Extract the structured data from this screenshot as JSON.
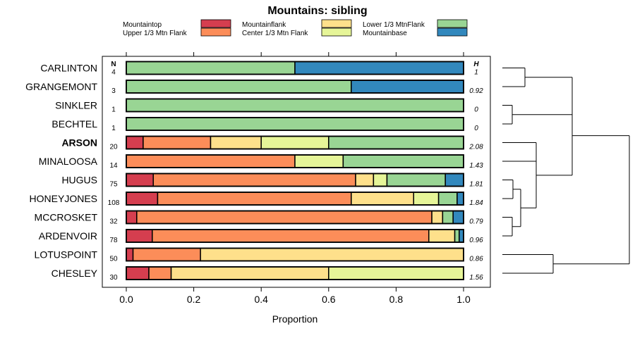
{
  "chart_data": {
    "type": "bar",
    "orientation": "horizontal-stacked",
    "title": "Mountains: sibling",
    "xlabel": "Proportion",
    "xlim": [
      0,
      1
    ],
    "x_ticks": [
      "0.0",
      "0.2",
      "0.4",
      "0.6",
      "0.8",
      "1.0"
    ],
    "n_header": "N",
    "h_header": "H",
    "highlighted_category": "ARSON",
    "legend_position": "top",
    "categories": [
      "CARLINTON",
      "GRANGEMONT",
      "SINKLER",
      "BECHTEL",
      "ARSON",
      "MINALOOSA",
      "HUGUS",
      "HONEYJONES",
      "MCCROSKET",
      "ARDENVOIR",
      "LOTUSPOINT",
      "CHESLEY"
    ],
    "n_values": [
      "4",
      "3",
      "1",
      "1",
      "20",
      "14",
      "75",
      "108",
      "32",
      "78",
      "50",
      "30"
    ],
    "h_values": [
      "1",
      "0.92",
      "0",
      "0",
      "2.08",
      "1.43",
      "1.81",
      "1.84",
      "0.79",
      "0.96",
      "0.86",
      "1.56"
    ],
    "series": [
      {
        "name": "Mountaintop",
        "color": "#d53e4f",
        "values": [
          0,
          0,
          0,
          0,
          0.05,
          0,
          0.08,
          0.093,
          0.031,
          0.077,
          0.02,
          0.067
        ]
      },
      {
        "name": "Upper 1/3 Mtn Flank",
        "color": "#fc8d59",
        "values": [
          0,
          0,
          0,
          0,
          0.2,
          0.5,
          0.6,
          0.574,
          0.875,
          0.82,
          0.2,
          0.066
        ]
      },
      {
        "name": "Mountainflank",
        "color": "#fee08b",
        "values": [
          0,
          0,
          0,
          0,
          0.15,
          0,
          0.053,
          0.185,
          0.032,
          0.077,
          0.78,
          0.467
        ]
      },
      {
        "name": "Center 1/3 Mtn Flank",
        "color": "#e6f598",
        "values": [
          0,
          0,
          0,
          0,
          0.2,
          0.143,
          0.04,
          0.074,
          0,
          0,
          0,
          0.4
        ]
      },
      {
        "name": "Lower 1/3 MtnFlank",
        "color": "#99d594",
        "values": [
          0.5,
          0.667,
          1,
          1,
          0.4,
          0.357,
          0.173,
          0.055,
          0.031,
          0.013,
          0,
          0
        ]
      },
      {
        "name": "Mountainbase",
        "color": "#3288bd",
        "values": [
          0.5,
          0.333,
          0,
          0,
          0,
          0,
          0.054,
          0.019,
          0.031,
          0.013,
          0,
          0
        ]
      }
    ],
    "dendrogram_groups": [
      [
        "CARLINTON",
        "GRANGEMONT",
        "SINKLER",
        "BECHTEL"
      ],
      [
        "ARSON",
        "MINALOOSA",
        "HUGUS",
        "HONEYJONES",
        "MCCROSKET",
        "ARDENVOIR"
      ],
      [
        "LOTUSPOINT",
        "CHESLEY"
      ]
    ]
  }
}
